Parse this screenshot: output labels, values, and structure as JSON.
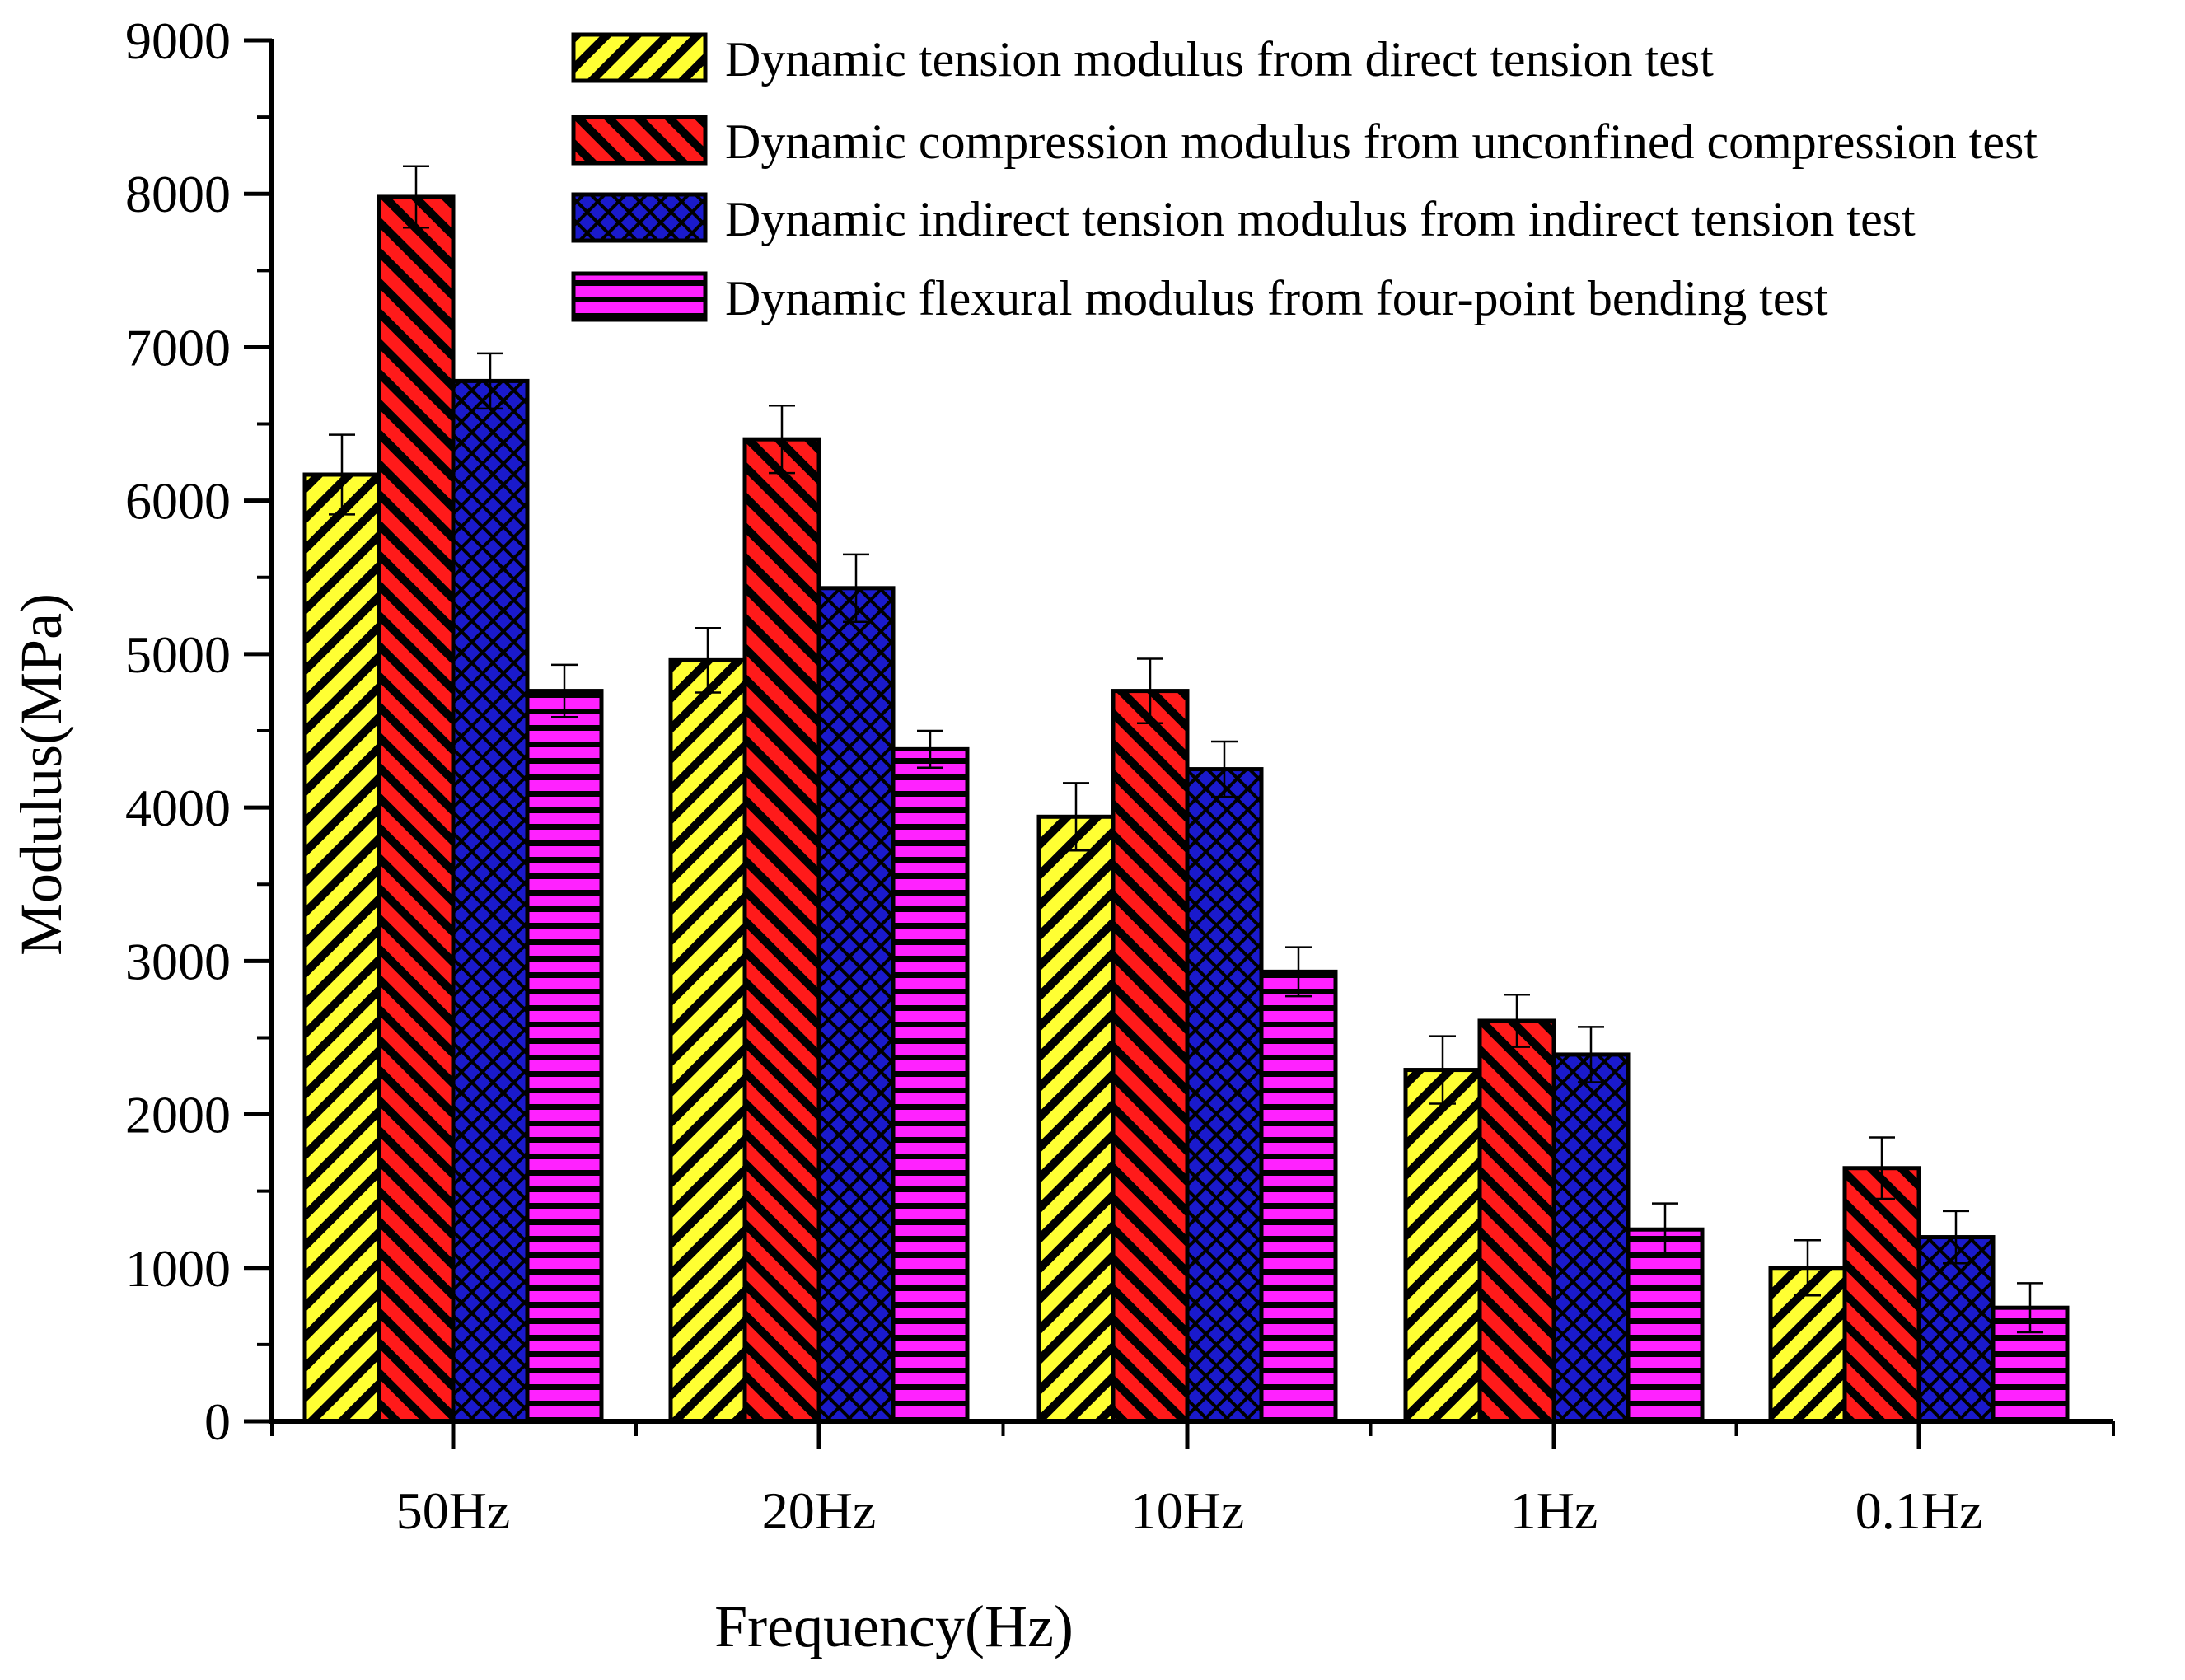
{
  "chart_data": {
    "type": "bar",
    "title": "",
    "xlabel": "Frequency(Hz)",
    "ylabel": "Modulus(MPa)",
    "ylim": [
      0,
      9000
    ],
    "yticks": [
      0,
      1000,
      2000,
      3000,
      4000,
      5000,
      6000,
      7000,
      8000,
      9000
    ],
    "ytick_labels": [
      "0",
      "1000",
      "2000",
      "3000",
      "4000",
      "5000",
      "6000",
      "7000",
      "8000",
      "9000"
    ],
    "categories": [
      "50Hz",
      "20Hz",
      "10Hz",
      "1Hz",
      "0.1Hz"
    ],
    "grid": false,
    "legend_position": "top-right",
    "series": [
      {
        "name": "Dynamic tension modulus from direct tension test",
        "color": "#ffff33",
        "pattern": "diagonal-up",
        "values": [
          6170,
          4960,
          3940,
          2290,
          1000
        ],
        "errors": [
          260,
          210,
          220,
          220,
          180
        ]
      },
      {
        "name": "Dynamic compression modulus from unconfined compression test",
        "color": "#ff1a1a",
        "pattern": "diagonal-down",
        "values": [
          7980,
          6400,
          4760,
          2610,
          1650
        ],
        "errors": [
          200,
          220,
          210,
          170,
          200
        ]
      },
      {
        "name": "Dynamic indirect tension modulus from indirect tension test",
        "color": "#1a1acc",
        "pattern": "crosshatch",
        "values": [
          6780,
          5430,
          4250,
          2390,
          1200
        ],
        "errors": [
          180,
          220,
          180,
          180,
          170
        ]
      },
      {
        "name": "Dynamic flexural modulus from four-point bending test",
        "color": "#ff22ff",
        "pattern": "horizontal",
        "values": [
          4760,
          4380,
          2930,
          1250,
          740
        ],
        "errors": [
          170,
          120,
          160,
          170,
          160
        ]
      }
    ]
  }
}
